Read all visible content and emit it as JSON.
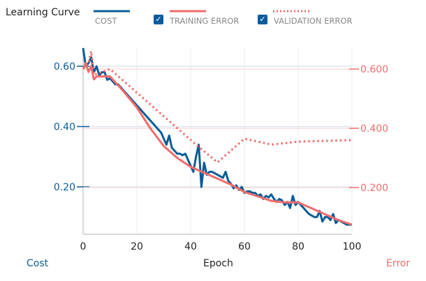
{
  "title": "Learning Curve",
  "legend": {
    "cost_label": "COST",
    "training_label": "TRAINING ERROR",
    "training_checked": true,
    "validation_label": "VALIDATION ERROR",
    "validation_checked": true,
    "checkmark": "✓"
  },
  "colors": {
    "cost": "#0b5c96",
    "error": "#f26b6b"
  },
  "chart_data": {
    "type": "line",
    "title": "Learning Curve",
    "xlabel": "Epoch",
    "ylabel_left": "Cost",
    "ylabel_right": "Error",
    "xlim": [
      0,
      100
    ],
    "ylim_left": [
      0.056,
      0.68
    ],
    "ylim_right": [
      0.05,
      0.69
    ],
    "x_ticks": [
      "0",
      "20",
      "40",
      "60",
      "80",
      "100"
    ],
    "y_ticks_left": [
      "0.60",
      "0.40",
      "0.20"
    ],
    "y_ticks_right": [
      "0.600",
      "0.400",
      "0.200"
    ],
    "grid": true,
    "series": [
      {
        "name": "COST",
        "axis": "left",
        "style": "solid",
        "x": [
          0,
          1,
          2,
          3,
          4,
          5,
          6,
          7,
          8,
          9,
          10,
          11,
          12,
          13,
          14,
          15,
          16,
          17,
          18,
          19,
          20,
          21,
          22,
          23,
          24,
          25,
          26,
          27,
          28,
          29,
          30,
          31,
          32,
          33,
          34,
          35,
          36,
          37,
          38,
          39,
          40,
          41,
          42,
          43,
          44,
          45,
          46,
          47,
          48,
          49,
          50,
          51,
          52,
          53,
          54,
          55,
          56,
          57,
          58,
          59,
          60,
          61,
          62,
          63,
          64,
          65,
          66,
          67,
          68,
          69,
          70,
          71,
          72,
          73,
          74,
          75,
          76,
          77,
          78,
          79,
          80,
          81,
          82,
          83,
          84,
          85,
          86,
          87,
          88,
          89,
          90,
          91,
          92,
          93,
          94,
          95,
          96,
          97,
          98,
          99,
          100
        ],
        "values": [
          0.66,
          0.6,
          0.61,
          0.63,
          0.58,
          0.6,
          0.57,
          0.58,
          0.58,
          0.555,
          0.56,
          0.55,
          0.54,
          0.54,
          0.53,
          0.52,
          0.51,
          0.5,
          0.49,
          0.48,
          0.47,
          0.46,
          0.45,
          0.44,
          0.43,
          0.42,
          0.41,
          0.4,
          0.39,
          0.38,
          0.36,
          0.34,
          0.37,
          0.33,
          0.32,
          0.31,
          0.31,
          0.305,
          0.31,
          0.29,
          0.27,
          0.25,
          0.3,
          0.34,
          0.2,
          0.28,
          0.24,
          0.25,
          0.25,
          0.245,
          0.24,
          0.235,
          0.23,
          0.25,
          0.22,
          0.21,
          0.195,
          0.205,
          0.19,
          0.2,
          0.18,
          0.185,
          0.185,
          0.18,
          0.18,
          0.17,
          0.175,
          0.16,
          0.17,
          0.165,
          0.175,
          0.16,
          0.15,
          0.16,
          0.155,
          0.14,
          0.15,
          0.13,
          0.17,
          0.14,
          0.15,
          0.14,
          0.13,
          0.12,
          0.11,
          0.105,
          0.1,
          0.1,
          0.12,
          0.085,
          0.1,
          0.1,
          0.09,
          0.11,
          0.08,
          0.09,
          0.085,
          0.08,
          0.075,
          0.075,
          0.075
        ]
      },
      {
        "name": "TRAINING ERROR",
        "axis": "right",
        "style": "solid",
        "x": [
          0,
          1,
          2,
          3,
          4,
          5,
          7,
          10,
          15,
          20,
          25,
          30,
          35,
          40,
          45,
          50,
          55,
          60,
          65,
          70,
          75,
          80,
          85,
          90,
          95,
          100
        ],
        "values": [
          0.6,
          0.62,
          0.59,
          0.61,
          0.565,
          0.575,
          0.575,
          0.575,
          0.525,
          0.47,
          0.4,
          0.34,
          0.3,
          0.27,
          0.25,
          0.23,
          0.21,
          0.185,
          0.17,
          0.155,
          0.15,
          0.15,
          0.13,
          0.11,
          0.09,
          0.075
        ]
      },
      {
        "name": "VALIDATION ERROR",
        "axis": "right",
        "style": "dotted",
        "x": [
          0,
          2,
          3,
          4,
          10,
          42,
          50,
          60,
          70,
          80,
          100
        ],
        "values": [
          0.6,
          0.62,
          0.66,
          0.58,
          0.6,
          0.345,
          0.285,
          0.365,
          0.345,
          0.355,
          0.36
        ]
      }
    ]
  }
}
